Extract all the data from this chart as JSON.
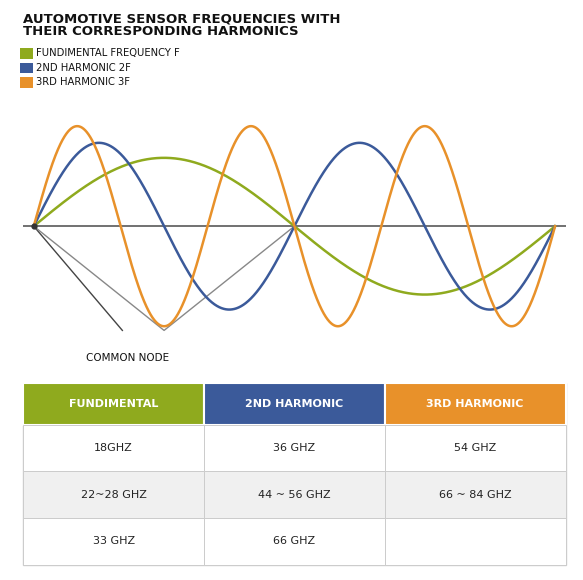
{
  "title_line1": "AUTOMOTIVE SENSOR FREQUENCIES WITH",
  "title_line2": "THEIR CORRESPONDING HARMONICS",
  "legend": [
    {
      "label": "FUNDIMENTAL FREQUENCY F",
      "color": "#8faa1e"
    },
    {
      "label": "2ND HARMONIC 2F",
      "color": "#3b5a9a"
    },
    {
      "label": "3RD HARMONIC 3F",
      "color": "#e8912a"
    }
  ],
  "common_node_label": "COMMON NODE",
  "wave_color_f": "#8faa1e",
  "wave_color_2f": "#3b5a9a",
  "wave_color_3f": "#e8912a",
  "axis_color": "#666666",
  "triangle_color": "#444444",
  "triangle_color2": "#888888",
  "table_headers": [
    "FUNDIMENTAL",
    "2ND HARMONIC",
    "3RD HARMONIC"
  ],
  "table_header_colors": [
    "#8faa1e",
    "#3b5a9a",
    "#e8912a"
  ],
  "table_rows": [
    [
      "18GHZ",
      "36 GHZ",
      "54 GHZ"
    ],
    [
      "22~28 GHZ",
      "44 ~ 56 GHZ",
      "66 ~ 84 GHZ"
    ],
    [
      "33 GHZ",
      "66 GHZ",
      ""
    ]
  ],
  "background_color": "#ffffff"
}
